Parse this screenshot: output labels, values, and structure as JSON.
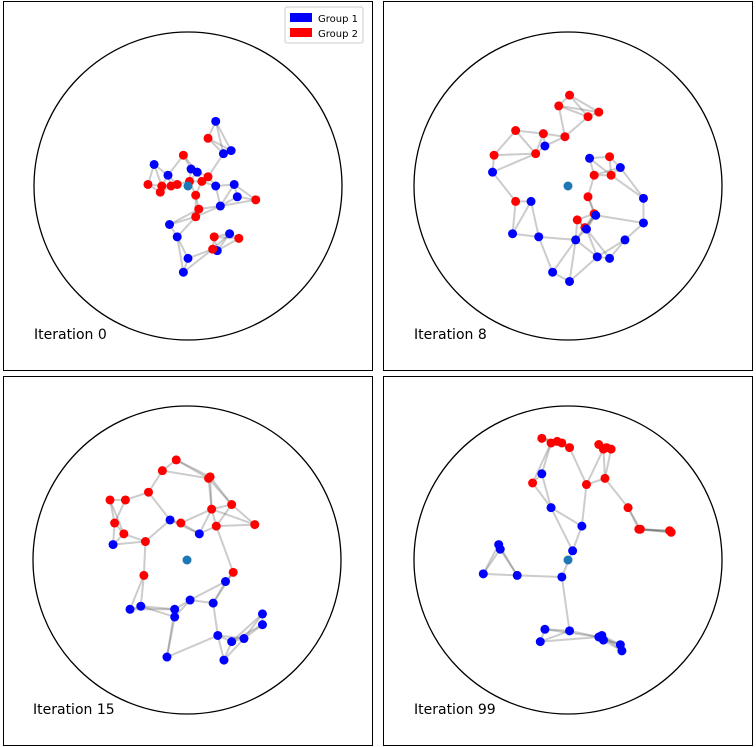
{
  "chart_data": {
    "type": "scatter",
    "legend": {
      "placement": "top-right of first panel",
      "entries": [
        {
          "label": "Group 1",
          "color": "#0000ff"
        },
        {
          "label": "Group 2",
          "color": "#ff0000"
        }
      ]
    },
    "colors": {
      "group1": "#0000ff",
      "group2": "#ff0000",
      "center": "#1f77b4",
      "edge": "#555555"
    },
    "panels": [
      {
        "label": "Iteration 0",
        "center": [
          0,
          0
        ],
        "nodes": [
          {
            "g": 1,
            "x": 0.18,
            "y": 0.42
          },
          {
            "g": 1,
            "x": -0.22,
            "y": 0.14
          },
          {
            "g": 1,
            "x": -0.13,
            "y": 0.07
          },
          {
            "g": 1,
            "x": 0.02,
            "y": 0.11
          },
          {
            "g": 1,
            "x": 0.06,
            "y": 0.09
          },
          {
            "g": 1,
            "x": 0.23,
            "y": 0.21
          },
          {
            "g": 1,
            "x": 0.28,
            "y": 0.23
          },
          {
            "g": 1,
            "x": 0.18,
            "y": 0
          },
          {
            "g": 1,
            "x": 0.3,
            "y": 0.01
          },
          {
            "g": 1,
            "x": 0.32,
            "y": -0.07
          },
          {
            "g": 1,
            "x": 0.21,
            "y": -0.13
          },
          {
            "g": 1,
            "x": 0.27,
            "y": -0.31
          },
          {
            "g": 1,
            "x": -0.12,
            "y": -0.25
          },
          {
            "g": 1,
            "x": -0.07,
            "y": -0.33
          },
          {
            "g": 1,
            "x": 0.19,
            "y": -0.42
          },
          {
            "g": 1,
            "x": 0,
            "y": -0.47
          },
          {
            "g": 1,
            "x": -0.03,
            "y": -0.56
          },
          {
            "g": 2,
            "x": 0.13,
            "y": 0.31
          },
          {
            "g": 2,
            "x": -0.03,
            "y": 0.2
          },
          {
            "g": 2,
            "x": -0.26,
            "y": 0.01
          },
          {
            "g": 2,
            "x": -0.17,
            "y": 0
          },
          {
            "g": 2,
            "x": -0.18,
            "y": -0.04
          },
          {
            "g": 2,
            "x": -0.11,
            "y": 0
          },
          {
            "g": 2,
            "x": -0.07,
            "y": 0.01
          },
          {
            "g": 2,
            "x": 0.01,
            "y": 0.03
          },
          {
            "g": 2,
            "x": 0.09,
            "y": 0.03
          },
          {
            "g": 2,
            "x": 0.13,
            "y": 0.06
          },
          {
            "g": 2,
            "x": 0.05,
            "y": -0.06
          },
          {
            "g": 2,
            "x": 0.44,
            "y": -0.09
          },
          {
            "g": 2,
            "x": 0.07,
            "y": -0.15
          },
          {
            "g": 2,
            "x": 0.05,
            "y": -0.2
          },
          {
            "g": 2,
            "x": 0.17,
            "y": -0.33
          },
          {
            "g": 2,
            "x": 0.33,
            "y": -0.34
          },
          {
            "g": 2,
            "x": 0.16,
            "y": -0.41
          }
        ]
      },
      {
        "label": "Iteration 8",
        "center": [
          0,
          0
        ],
        "nodes": [
          {
            "g": 2,
            "x": 0.01,
            "y": 0.59
          },
          {
            "g": 2,
            "x": -0.06,
            "y": 0.52
          },
          {
            "g": 2,
            "x": 0.2,
            "y": 0.48
          },
          {
            "g": 2,
            "x": 0.13,
            "y": 0.45
          },
          {
            "g": 2,
            "x": -0.34,
            "y": 0.36
          },
          {
            "g": 2,
            "x": -0.16,
            "y": 0.34
          },
          {
            "g": 2,
            "x": -0.02,
            "y": 0.32
          },
          {
            "g": 2,
            "x": -0.21,
            "y": 0.21
          },
          {
            "g": 2,
            "x": -0.48,
            "y": 0.2
          },
          {
            "g": 2,
            "x": 0.27,
            "y": 0.19
          },
          {
            "g": 2,
            "x": 0.17,
            "y": 0.07
          },
          {
            "g": 2,
            "x": 0.28,
            "y": 0.07
          },
          {
            "g": 2,
            "x": 0.13,
            "y": -0.07
          },
          {
            "g": 2,
            "x": -0.34,
            "y": -0.1
          },
          {
            "g": 2,
            "x": 0.17,
            "y": -0.18
          },
          {
            "g": 2,
            "x": 0.06,
            "y": -0.22
          },
          {
            "g": 2,
            "x": 0.11,
            "y": -0.27
          },
          {
            "g": 1,
            "x": -0.15,
            "y": 0.26
          },
          {
            "g": 1,
            "x": 0.14,
            "y": 0.18
          },
          {
            "g": 1,
            "x": 0.34,
            "y": 0.12
          },
          {
            "g": 1,
            "x": -0.49,
            "y": 0.09
          },
          {
            "g": 1,
            "x": -0.24,
            "y": -0.1
          },
          {
            "g": 1,
            "x": 0.49,
            "y": -0.08
          },
          {
            "g": 1,
            "x": 0.18,
            "y": -0.19
          },
          {
            "g": 1,
            "x": 0.49,
            "y": -0.24
          },
          {
            "g": 1,
            "x": 0.12,
            "y": -0.28
          },
          {
            "g": 1,
            "x": -0.36,
            "y": -0.31
          },
          {
            "g": 1,
            "x": -0.19,
            "y": -0.33
          },
          {
            "g": 1,
            "x": 0.05,
            "y": -0.35
          },
          {
            "g": 1,
            "x": 0.37,
            "y": -0.35
          },
          {
            "g": 1,
            "x": 0.19,
            "y": -0.46
          },
          {
            "g": 1,
            "x": 0.27,
            "y": -0.47
          },
          {
            "g": 1,
            "x": -0.1,
            "y": -0.56
          },
          {
            "g": 1,
            "x": 0.01,
            "y": -0.62
          }
        ]
      },
      {
        "label": "Iteration 15",
        "center": [
          0,
          0
        ],
        "nodes": [
          {
            "g": 2,
            "x": -0.07,
            "y": 0.65
          },
          {
            "g": 2,
            "x": -0.16,
            "y": 0.58
          },
          {
            "g": 2,
            "x": 0.15,
            "y": 0.54
          },
          {
            "g": 2,
            "x": 0.14,
            "y": 0.53
          },
          {
            "g": 2,
            "x": -0.25,
            "y": 0.44
          },
          {
            "g": 2,
            "x": -0.5,
            "y": 0.39
          },
          {
            "g": 2,
            "x": -0.4,
            "y": 0.39
          },
          {
            "g": 2,
            "x": 0.29,
            "y": 0.36
          },
          {
            "g": 2,
            "x": 0.16,
            "y": 0.33
          },
          {
            "g": 2,
            "x": -0.47,
            "y": 0.24
          },
          {
            "g": 2,
            "x": -0.04,
            "y": 0.24
          },
          {
            "g": 2,
            "x": 0.19,
            "y": 0.22
          },
          {
            "g": 2,
            "x": 0.44,
            "y": 0.23
          },
          {
            "g": 2,
            "x": -0.41,
            "y": 0.17
          },
          {
            "g": 2,
            "x": -0.27,
            "y": 0.12
          },
          {
            "g": 2,
            "x": -0.28,
            "y": -0.1
          },
          {
            "g": 2,
            "x": 0.3,
            "y": -0.08
          },
          {
            "g": 1,
            "x": -0.11,
            "y": 0.26
          },
          {
            "g": 1,
            "x": 0.08,
            "y": 0.17
          },
          {
            "g": 1,
            "x": -0.48,
            "y": 0.1
          },
          {
            "g": 1,
            "x": 0.25,
            "y": -0.14
          },
          {
            "g": 1,
            "x": 0.02,
            "y": -0.26
          },
          {
            "g": 1,
            "x": -0.3,
            "y": -0.3
          },
          {
            "g": 1,
            "x": -0.37,
            "y": -0.32
          },
          {
            "g": 1,
            "x": -0.08,
            "y": -0.32
          },
          {
            "g": 1,
            "x": 0.17,
            "y": -0.28
          },
          {
            "g": 1,
            "x": 0.49,
            "y": -0.35
          },
          {
            "g": 1,
            "x": -0.08,
            "y": -0.37
          },
          {
            "g": 1,
            "x": 0.49,
            "y": -0.42
          },
          {
            "g": 1,
            "x": 0.2,
            "y": -0.49
          },
          {
            "g": 1,
            "x": 0.37,
            "y": -0.51
          },
          {
            "g": 1,
            "x": 0.29,
            "y": -0.53
          },
          {
            "g": 1,
            "x": -0.13,
            "y": -0.63
          },
          {
            "g": 1,
            "x": 0.24,
            "y": -0.65
          }
        ]
      },
      {
        "label": "Iteration 99",
        "center": [
          0,
          0
        ],
        "nodes": [
          {
            "g": 2,
            "x": -0.17,
            "y": 0.79
          },
          {
            "g": 2,
            "x": -0.11,
            "y": 0.76
          },
          {
            "g": 2,
            "x": -0.07,
            "y": 0.77
          },
          {
            "g": 2,
            "x": -0.04,
            "y": 0.76
          },
          {
            "g": 2,
            "x": 0.01,
            "y": 0.73
          },
          {
            "g": 2,
            "x": 0.2,
            "y": 0.75
          },
          {
            "g": 2,
            "x": 0.23,
            "y": 0.72
          },
          {
            "g": 2,
            "x": 0.28,
            "y": 0.72
          },
          {
            "g": 2,
            "x": 0.25,
            "y": 0.73
          },
          {
            "g": 2,
            "x": 0.12,
            "y": 0.49
          },
          {
            "g": 2,
            "x": -0.23,
            "y": 0.5
          },
          {
            "g": 2,
            "x": 0.24,
            "y": 0.53
          },
          {
            "g": 2,
            "x": 0.39,
            "y": 0.34
          },
          {
            "g": 2,
            "x": 0.47,
            "y": 0.2
          },
          {
            "g": 2,
            "x": 0.46,
            "y": 0.2
          },
          {
            "g": 2,
            "x": 0.66,
            "y": 0.19
          },
          {
            "g": 2,
            "x": 0.67,
            "y": 0.18
          },
          {
            "g": 1,
            "x": -0.17,
            "y": 0.56
          },
          {
            "g": 1,
            "x": -0.11,
            "y": 0.34
          },
          {
            "g": 1,
            "x": 0.09,
            "y": 0.22
          },
          {
            "g": 1,
            "x": -0.45,
            "y": 0.1
          },
          {
            "g": 1,
            "x": -0.44,
            "y": 0.07
          },
          {
            "g": 1,
            "x": 0.03,
            "y": 0.06
          },
          {
            "g": 1,
            "x": -0.55,
            "y": -0.09
          },
          {
            "g": 1,
            "x": -0.33,
            "y": -0.1
          },
          {
            "g": 1,
            "x": -0.04,
            "y": -0.11
          },
          {
            "g": 1,
            "x": -0.15,
            "y": -0.45
          },
          {
            "g": 1,
            "x": 0.01,
            "y": -0.46
          },
          {
            "g": 1,
            "x": 0.2,
            "y": -0.5
          },
          {
            "g": 1,
            "x": 0.22,
            "y": -0.49
          },
          {
            "g": 1,
            "x": 0.23,
            "y": -0.52
          },
          {
            "g": 1,
            "x": 0.34,
            "y": -0.55
          },
          {
            "g": 1,
            "x": -0.18,
            "y": -0.53
          },
          {
            "g": 1,
            "x": 0.35,
            "y": -0.59
          }
        ]
      }
    ]
  }
}
